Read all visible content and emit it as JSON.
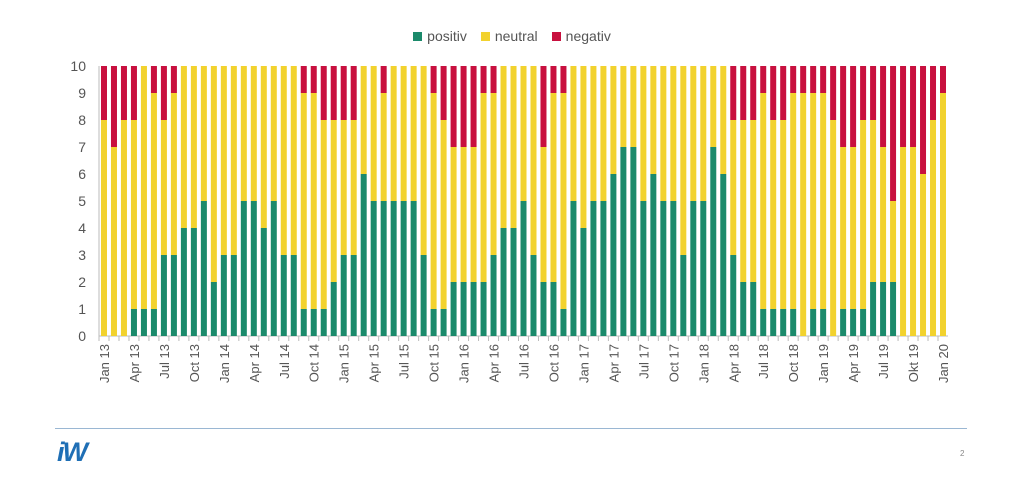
{
  "chart_data": {
    "type": "bar",
    "stacked": true,
    "title": "",
    "xlabel": "",
    "ylabel": "",
    "ylim": [
      0,
      10
    ],
    "yticks": [
      0,
      1,
      2,
      3,
      4,
      5,
      6,
      7,
      8,
      9,
      10
    ],
    "grid": false,
    "legend_position": "top-center",
    "start_month": "Jan 13",
    "end_month": "Jan 20",
    "tick_every": 3,
    "tick_labels": [
      "Jan 13",
      "Apr 13",
      "Jul 13",
      "Oct 13",
      "Jan 14",
      "Apr 14",
      "Jul 14",
      "Oct 14",
      "Jan 15",
      "Apr 15",
      "Jul 15",
      "Oct 15",
      "Jan 16",
      "Apr 16",
      "Jul 16",
      "Oct 16",
      "Jan 17",
      "Apr 17",
      "Jul 17",
      "Oct 17",
      "Jan 18",
      "Apr 18",
      "Jul 18",
      "Oct 18",
      "Jan 19",
      "Apr 19",
      "Jul 19",
      "Okt 19",
      "Jan 20"
    ],
    "series": [
      {
        "name": "positiv",
        "color": "#1b8a6b",
        "values": [
          0,
          0,
          0,
          1,
          1,
          1,
          3,
          3,
          4,
          4,
          5,
          2,
          3,
          3,
          5,
          5,
          4,
          5,
          3,
          3,
          1,
          1,
          1,
          2,
          3,
          3,
          6,
          5,
          5,
          5,
          5,
          5,
          3,
          1,
          1,
          2,
          2,
          2,
          2,
          3,
          4,
          4,
          5,
          3,
          2,
          2,
          1,
          5,
          4,
          5,
          5,
          6,
          7,
          7,
          5,
          6,
          5,
          5,
          3,
          5,
          5,
          7,
          6,
          3,
          2,
          2,
          1,
          1,
          1,
          1,
          0,
          1,
          1,
          0,
          1,
          1,
          1,
          2,
          2,
          2,
          0,
          0,
          0,
          0,
          0
        ]
      },
      {
        "name": "neutral",
        "color": "#f2d22e",
        "values": [
          8,
          7,
          8,
          7,
          9,
          8,
          5,
          6,
          6,
          6,
          5,
          8,
          7,
          7,
          5,
          5,
          6,
          5,
          7,
          7,
          8,
          8,
          7,
          6,
          5,
          5,
          4,
          5,
          4,
          5,
          5,
          5,
          7,
          8,
          7,
          5,
          5,
          5,
          7,
          6,
          6,
          6,
          5,
          7,
          5,
          7,
          8,
          5,
          6,
          5,
          5,
          4,
          3,
          3,
          5,
          4,
          5,
          5,
          7,
          5,
          5,
          3,
          4,
          5,
          6,
          6,
          8,
          7,
          7,
          8,
          9,
          8,
          8,
          8,
          6,
          6,
          7,
          6,
          5,
          3,
          7,
          7,
          6,
          8,
          9
        ]
      },
      {
        "name": "negativ",
        "color": "#c8103e",
        "values": [
          2,
          3,
          2,
          2,
          0,
          1,
          2,
          1,
          0,
          0,
          0,
          0,
          0,
          0,
          0,
          0,
          0,
          0,
          0,
          0,
          1,
          1,
          2,
          2,
          2,
          2,
          0,
          0,
          1,
          0,
          0,
          0,
          0,
          1,
          2,
          3,
          3,
          3,
          1,
          1,
          0,
          0,
          0,
          0,
          3,
          1,
          1,
          0,
          0,
          0,
          0,
          0,
          0,
          0,
          0,
          0,
          0,
          0,
          0,
          0,
          0,
          0,
          0,
          2,
          2,
          2,
          1,
          2,
          2,
          1,
          1,
          1,
          1,
          2,
          3,
          3,
          2,
          2,
          3,
          5,
          3,
          3,
          4,
          2,
          1
        ]
      }
    ]
  },
  "footer": {
    "logo": "iW",
    "page_number": "2"
  }
}
